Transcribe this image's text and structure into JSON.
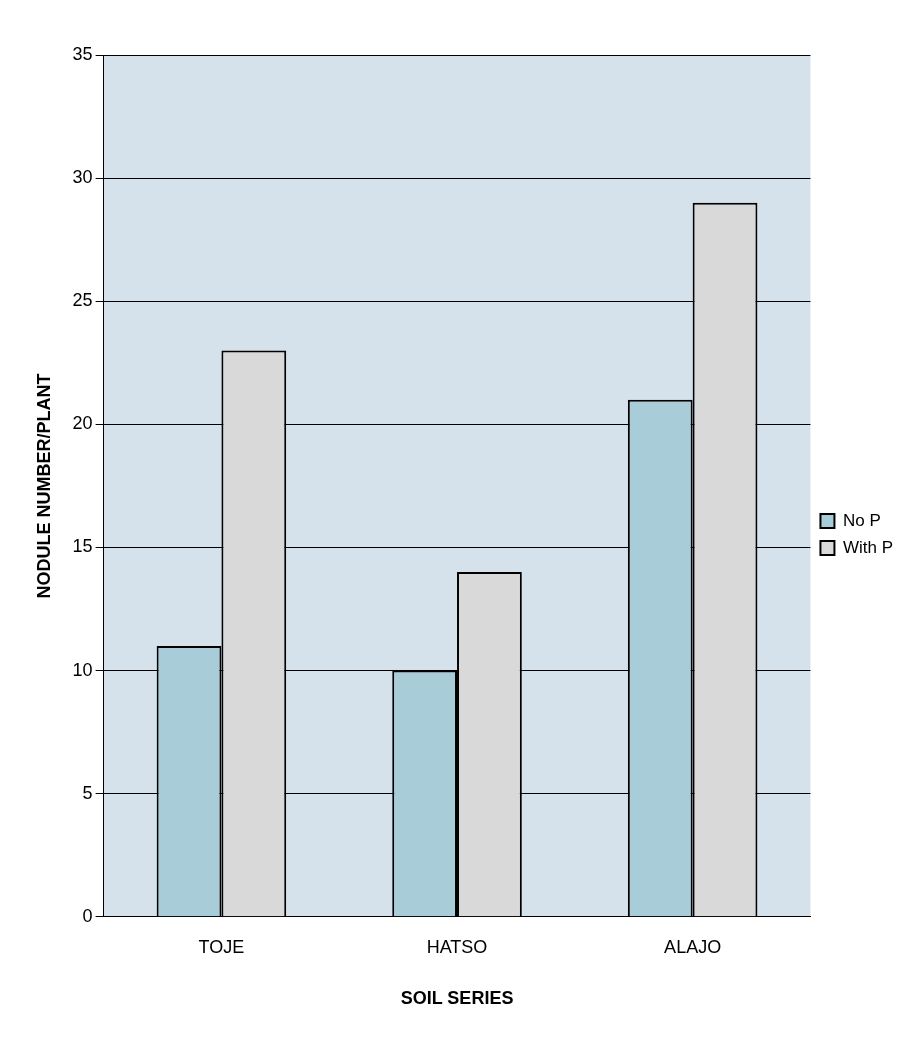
{
  "chart_data": {
    "type": "bar",
    "xlabel": "SOIL SERIES",
    "ylabel": "NODULE NUMBER/PLANT",
    "categories": [
      "TOJE",
      "HATSO",
      "ALAJO"
    ],
    "series": [
      {
        "name": "No P",
        "color": "#a8ccd8",
        "values": [
          11,
          10,
          21
        ]
      },
      {
        "name": "With P",
        "color": "#d9d9d9",
        "values": [
          23,
          14,
          29
        ]
      }
    ],
    "ylim": [
      0,
      35
    ],
    "yticks": [
      0,
      5,
      10,
      15,
      20,
      25,
      30,
      35
    ],
    "grid": "y",
    "legend": "right"
  }
}
